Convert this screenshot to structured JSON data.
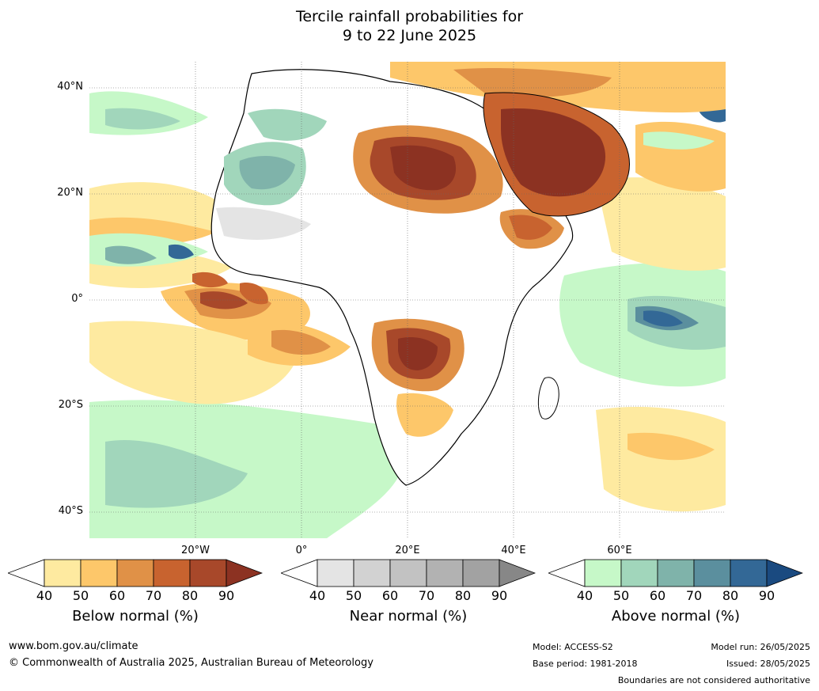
{
  "title": {
    "line1": "Tercile rainfall probabilities for",
    "line2": "9 to 22 June 2025"
  },
  "map": {
    "lat_labels": [
      "40°N",
      "20°N",
      "0°",
      "20°S",
      "40°S"
    ],
    "lon_labels": [
      "20°W",
      "0°",
      "20°E",
      "40°E",
      "60°E"
    ]
  },
  "colorbars": [
    {
      "title": "Below normal (%)",
      "ticks": [
        "40",
        "50",
        "60",
        "70",
        "80",
        "90"
      ],
      "colors": [
        "#ffffff",
        "#feeaa0",
        "#fdc76a",
        "#e09147",
        "#c8632f",
        "#a8482a",
        "#8c3222"
      ]
    },
    {
      "title": "Near normal (%)",
      "ticks": [
        "40",
        "50",
        "60",
        "70",
        "80",
        "90"
      ],
      "colors": [
        "#ffffff",
        "#e4e4e4",
        "#d2d2d2",
        "#c2c2c2",
        "#b2b2b2",
        "#a2a2a2",
        "#878787"
      ]
    },
    {
      "title": "Above normal (%)",
      "ticks": [
        "40",
        "50",
        "60",
        "70",
        "80",
        "90"
      ],
      "colors": [
        "#ffffff",
        "#c6f8c8",
        "#a1d6bb",
        "#7fb3aa",
        "#5b8f9e",
        "#336896",
        "#1a4a80"
      ]
    }
  ],
  "footer": {
    "website": "www.bom.gov.au/climate",
    "copyright": "© Commonwealth of Australia 2025, Australian Bureau of Meteorology",
    "model": "Model: ACCESS-S2",
    "base_period": "Base period: 1981-2018",
    "model_run": "Model run: 26/05/2025",
    "issued": "Issued: 28/05/2025",
    "disclaimer": "Boundaries are not considered authoritative"
  }
}
